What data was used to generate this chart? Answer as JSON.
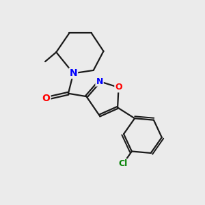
{
  "background_color": "#ebebeb",
  "bond_color": "#1a1a1a",
  "N_color": "#0000ff",
  "O_color": "#ff0000",
  "Cl_color": "#008000",
  "line_width": 1.6,
  "font_size": 9,
  "figsize": [
    3.0,
    3.0
  ],
  "dpi": 100,
  "xlim": [
    0,
    10
  ],
  "ylim": [
    0,
    10
  ]
}
